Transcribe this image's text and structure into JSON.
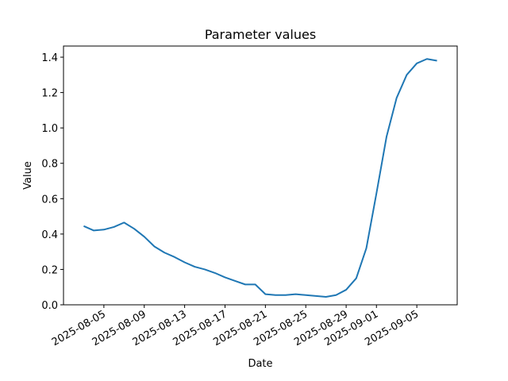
{
  "chart_data": {
    "type": "line",
    "title": "Parameter values",
    "x_label": "Date",
    "y_label": "Value",
    "x": [
      "2025-08-03",
      "2025-08-04",
      "2025-08-05",
      "2025-08-06",
      "2025-08-07",
      "2025-08-08",
      "2025-08-09",
      "2025-08-10",
      "2025-08-11",
      "2025-08-12",
      "2025-08-13",
      "2025-08-14",
      "2025-08-15",
      "2025-08-16",
      "2025-08-17",
      "2025-08-18",
      "2025-08-19",
      "2025-08-20",
      "2025-08-21",
      "2025-08-22",
      "2025-08-23",
      "2025-08-24",
      "2025-08-25",
      "2025-08-26",
      "2025-08-27",
      "2025-08-28",
      "2025-08-29",
      "2025-08-30",
      "2025-08-31",
      "2025-09-01",
      "2025-09-02",
      "2025-09-03",
      "2025-09-04",
      "2025-09-05",
      "2025-09-06",
      "2025-09-07"
    ],
    "series": [
      {
        "color": "#1f77b4",
        "values": [
          0.445,
          0.42,
          0.425,
          0.44,
          0.465,
          0.43,
          0.385,
          0.33,
          0.295,
          0.27,
          0.24,
          0.215,
          0.2,
          0.18,
          0.155,
          0.135,
          0.115,
          0.115,
          0.06,
          0.055,
          0.055,
          0.06,
          0.055,
          0.05,
          0.045,
          0.055,
          0.085,
          0.15,
          0.32,
          0.63,
          0.95,
          1.17,
          1.3,
          1.365,
          1.39,
          1.38
        ]
      }
    ],
    "xlim": [
      "2025-08-01",
      "2025-09-09"
    ],
    "xticks": [
      "2025-08-05",
      "2025-08-09",
      "2025-08-13",
      "2025-08-17",
      "2025-08-21",
      "2025-08-25",
      "2025-08-29",
      "2025-09-01",
      "2025-09-05"
    ],
    "ylim": [
      0,
      1.463
    ],
    "yticks": [
      {
        "value": 0,
        "label": "0.0"
      },
      0.2,
      0.4,
      0.6,
      0.8,
      {
        "value": 1,
        "label": "1.0"
      },
      1.2,
      1.4
    ],
    "grid": false
  }
}
